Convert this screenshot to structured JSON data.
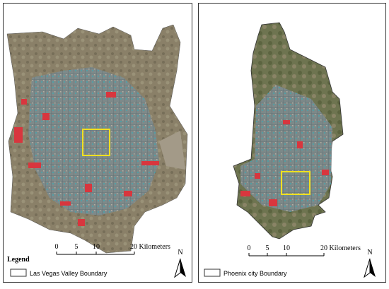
{
  "panels": [
    {
      "legend_title": "Legend",
      "scale_labels": [
        "0",
        "5",
        "10",
        "20 Kilometers"
      ],
      "north": "N",
      "boundary_label": "Las Vegas Valley Boundary"
    },
    {
      "scale_labels": [
        "0",
        "5",
        "10",
        "20 Kilometers"
      ],
      "north": "N",
      "boundary_label": "Phoenix city Boundary"
    }
  ]
}
